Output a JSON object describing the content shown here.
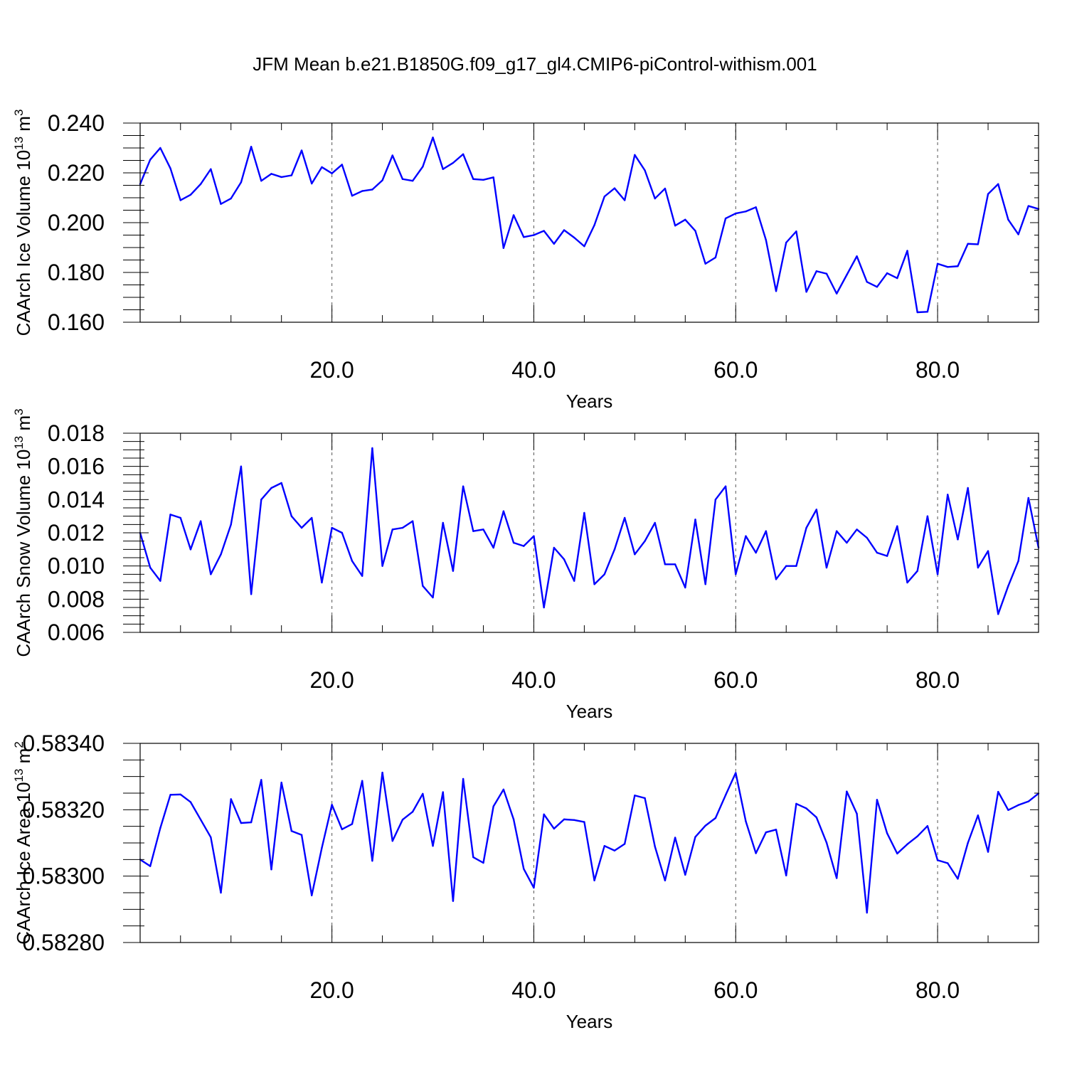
{
  "title": "JFM Mean b.e21.B1850G.f09_g17_gl4.CMIP6-piControl-withism.001",
  "colors": {
    "series": "#0000ff",
    "axes": "#000000",
    "grid": "#555555"
  },
  "chart_data": [
    {
      "type": "line",
      "xlabel": "Years",
      "ylabel": "CAArch Ice Volume 10",
      "ylabel_exp": "13",
      "ylabel_unit": "m",
      "ylabel_unit_exp": "3",
      "xlim": [
        1,
        90
      ],
      "ylim": [
        0.16,
        0.24
      ],
      "x_ticks": [
        20,
        40,
        60,
        80
      ],
      "x_tick_labels": [
        "20.0",
        "40.0",
        "60.0",
        "80.0"
      ],
      "y_ticks": [
        0.16,
        0.18,
        0.2,
        0.22,
        0.24
      ],
      "y_tick_labels": [
        "0.160",
        "0.180",
        "0.200",
        "0.220",
        "0.240"
      ],
      "grid": "vertical dashed at major x ticks",
      "x": [
        1,
        2,
        3,
        4,
        5,
        6,
        7,
        8,
        9,
        10,
        11,
        12,
        13,
        14,
        15,
        16,
        17,
        18,
        19,
        20,
        21,
        22,
        23,
        24,
        25,
        26,
        27,
        28,
        29,
        30,
        31,
        32,
        33,
        34,
        35,
        36,
        37,
        38,
        39,
        40,
        41,
        42,
        43,
        44,
        45,
        46,
        47,
        48,
        49,
        50,
        51,
        52,
        53,
        54,
        55,
        56,
        57,
        58,
        59,
        60,
        61,
        62,
        63,
        64,
        65,
        66,
        67,
        68,
        69,
        70,
        71,
        72,
        73,
        74,
        75,
        76,
        77,
        78,
        79,
        80,
        81,
        82,
        83,
        84,
        85,
        86,
        87,
        88,
        89,
        90
      ],
      "values": [
        0.2155,
        0.2253,
        0.23,
        0.2218,
        0.209,
        0.2112,
        0.2155,
        0.2215,
        0.2075,
        0.2097,
        0.2162,
        0.2305,
        0.2168,
        0.2196,
        0.2183,
        0.219,
        0.229,
        0.2157,
        0.2223,
        0.2198,
        0.2233,
        0.2108,
        0.2127,
        0.2133,
        0.217,
        0.227,
        0.2175,
        0.2168,
        0.2225,
        0.2342,
        0.2215,
        0.224,
        0.2275,
        0.2175,
        0.2172,
        0.2182,
        0.1898,
        0.203,
        0.1942,
        0.195,
        0.1967,
        0.1915,
        0.197,
        0.194,
        0.1905,
        0.199,
        0.2105,
        0.2138,
        0.209,
        0.2272,
        0.221,
        0.2097,
        0.2137,
        0.1988,
        0.2012,
        0.1967,
        0.1835,
        0.186,
        0.2017,
        0.2037,
        0.2045,
        0.2062,
        0.193,
        0.1725,
        0.192,
        0.1965,
        0.1722,
        0.1805,
        0.1795,
        0.1715,
        0.179,
        0.1865,
        0.1762,
        0.1742,
        0.1797,
        0.1777,
        0.1887,
        0.164,
        0.1642,
        0.1835,
        0.1822,
        0.1825,
        0.1915,
        0.1913,
        0.2115,
        0.2155,
        0.2012,
        0.1953,
        0.2067,
        0.2055
      ]
    },
    {
      "type": "line",
      "xlabel": "Years",
      "ylabel": "CAArch Snow Volume 10",
      "ylabel_exp": "13",
      "ylabel_unit": "m",
      "ylabel_unit_exp": "3",
      "xlim": [
        1,
        90
      ],
      "ylim": [
        0.006,
        0.018
      ],
      "x_ticks": [
        20,
        40,
        60,
        80
      ],
      "x_tick_labels": [
        "20.0",
        "40.0",
        "60.0",
        "80.0"
      ],
      "y_ticks": [
        0.006,
        0.008,
        0.01,
        0.012,
        0.014,
        0.016,
        0.018
      ],
      "y_tick_labels": [
        "0.006",
        "0.008",
        "0.010",
        "0.012",
        "0.014",
        "0.016",
        "0.018"
      ],
      "grid": "vertical dashed at major x ticks",
      "x": [
        1,
        2,
        3,
        4,
        5,
        6,
        7,
        8,
        9,
        10,
        11,
        12,
        13,
        14,
        15,
        16,
        17,
        18,
        19,
        20,
        21,
        22,
        23,
        24,
        25,
        26,
        27,
        28,
        29,
        30,
        31,
        32,
        33,
        34,
        35,
        36,
        37,
        38,
        39,
        40,
        41,
        42,
        43,
        44,
        45,
        46,
        47,
        48,
        49,
        50,
        51,
        52,
        53,
        54,
        55,
        56,
        57,
        58,
        59,
        60,
        61,
        62,
        63,
        64,
        65,
        66,
        67,
        68,
        69,
        70,
        71,
        72,
        73,
        74,
        75,
        76,
        77,
        78,
        79,
        80,
        81,
        82,
        83,
        84,
        85,
        86,
        87,
        88,
        89,
        90
      ],
      "values": [
        0.012,
        0.0099,
        0.0091,
        0.0131,
        0.0129,
        0.011,
        0.0127,
        0.0095,
        0.0107,
        0.0125,
        0.016,
        0.0083,
        0.014,
        0.0147,
        0.015,
        0.013,
        0.0123,
        0.0129,
        0.009,
        0.0123,
        0.012,
        0.0103,
        0.0094,
        0.0171,
        0.01,
        0.0122,
        0.0123,
        0.0127,
        0.0088,
        0.0081,
        0.0126,
        0.0097,
        0.0148,
        0.0121,
        0.0122,
        0.0111,
        0.0133,
        0.0114,
        0.0112,
        0.0118,
        0.0075,
        0.0111,
        0.0104,
        0.0091,
        0.0132,
        0.0089,
        0.0095,
        0.011,
        0.0129,
        0.0107,
        0.0115,
        0.0126,
        0.0101,
        0.0101,
        0.0087,
        0.0128,
        0.0089,
        0.014,
        0.0148,
        0.0095,
        0.0118,
        0.0108,
        0.0121,
        0.0092,
        0.01,
        0.01,
        0.0123,
        0.0134,
        0.0099,
        0.0121,
        0.0114,
        0.0122,
        0.0117,
        0.0108,
        0.0106,
        0.0124,
        0.009,
        0.0097,
        0.013,
        0.0095,
        0.0143,
        0.0116,
        0.0147,
        0.0099,
        0.0109,
        0.0071,
        0.0088,
        0.0103,
        0.0141,
        0.0111
      ]
    },
    {
      "type": "line",
      "xlabel": "Years",
      "ylabel": "CAArch Ice Area 10",
      "ylabel_exp": "13",
      "ylabel_unit": "m",
      "ylabel_unit_exp": "2",
      "xlim": [
        1,
        90
      ],
      "ylim": [
        0.5828,
        0.5834
      ],
      "x_ticks": [
        20,
        40,
        60,
        80
      ],
      "x_tick_labels": [
        "20.0",
        "40.0",
        "60.0",
        "80.0"
      ],
      "y_ticks": [
        0.5828,
        0.583,
        0.5832,
        0.5834
      ],
      "y_tick_labels": [
        "0.58280",
        "0.58300",
        "0.58320",
        "0.58340"
      ],
      "grid": "vertical dashed at major x ticks",
      "x": [
        1,
        2,
        3,
        4,
        5,
        6,
        7,
        8,
        9,
        10,
        11,
        12,
        13,
        14,
        15,
        16,
        17,
        18,
        19,
        20,
        21,
        22,
        23,
        24,
        25,
        26,
        27,
        28,
        29,
        30,
        31,
        32,
        33,
        34,
        35,
        36,
        37,
        38,
        39,
        40,
        41,
        42,
        43,
        44,
        45,
        46,
        47,
        48,
        49,
        50,
        51,
        52,
        53,
        54,
        55,
        56,
        57,
        58,
        59,
        60,
        61,
        62,
        63,
        64,
        65,
        66,
        67,
        68,
        69,
        70,
        71,
        72,
        73,
        74,
        75,
        76,
        77,
        78,
        79,
        80,
        81,
        82,
        83,
        84,
        85,
        86,
        87,
        88,
        89,
        90
      ],
      "values": [
        0.58305,
        0.58303,
        0.583145,
        0.583245,
        0.583246,
        0.583223,
        0.58317,
        0.583117,
        0.58295,
        0.583232,
        0.58316,
        0.583162,
        0.58329,
        0.58302,
        0.583282,
        0.583136,
        0.583124,
        0.582942,
        0.583085,
        0.583215,
        0.583141,
        0.583157,
        0.583287,
        0.583046,
        0.583312,
        0.583106,
        0.58317,
        0.583194,
        0.583248,
        0.583091,
        0.583253,
        0.582925,
        0.583293,
        0.583057,
        0.58304,
        0.58321,
        0.583261,
        0.583171,
        0.583022,
        0.582965,
        0.583186,
        0.583143,
        0.583171,
        0.583169,
        0.583163,
        0.582987,
        0.583091,
        0.583077,
        0.583097,
        0.583243,
        0.583235,
        0.583089,
        0.582987,
        0.583116,
        0.583004,
        0.583118,
        0.583152,
        0.583175,
        0.583244,
        0.583311,
        0.583165,
        0.583069,
        0.583132,
        0.58314,
        0.583002,
        0.583218,
        0.583204,
        0.583177,
        0.583101,
        0.582994,
        0.583255,
        0.583188,
        0.58289,
        0.58323,
        0.583129,
        0.583068,
        0.583096,
        0.58312,
        0.583151,
        0.583048,
        0.583039,
        0.582992,
        0.5831,
        0.583183,
        0.583073,
        0.583254,
        0.583199,
        0.583214,
        0.583225,
        0.583249
      ]
    }
  ]
}
